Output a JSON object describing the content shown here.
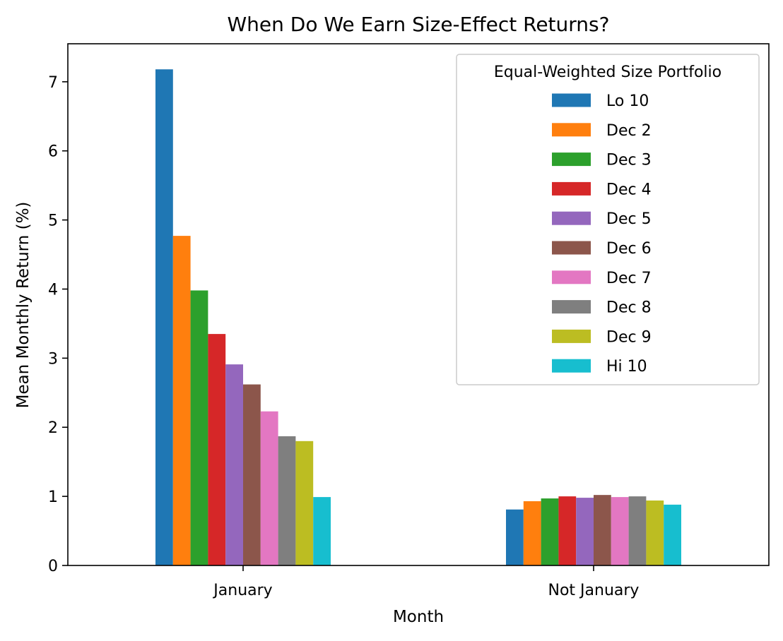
{
  "chart_data": {
    "type": "bar",
    "title": "When Do We Earn Size-Effect Returns?",
    "xlabel": "Month",
    "ylabel": "Mean Monthly Return (%)",
    "ylim": [
      0,
      7.55
    ],
    "yticks": [
      0,
      1,
      2,
      3,
      4,
      5,
      6,
      7
    ],
    "categories": [
      "January",
      "Not January"
    ],
    "grid": false,
    "legend": {
      "title": "Equal-Weighted Size Portfolio",
      "placement": "top-right"
    },
    "series": [
      {
        "name": "Lo 10",
        "color": "#1f77b4",
        "values": [
          7.18,
          0.81
        ]
      },
      {
        "name": "Dec 2",
        "color": "#ff7f0e",
        "values": [
          4.77,
          0.93
        ]
      },
      {
        "name": "Dec 3",
        "color": "#2ca02c",
        "values": [
          3.98,
          0.97
        ]
      },
      {
        "name": "Dec 4",
        "color": "#d62728",
        "values": [
          3.35,
          1.0
        ]
      },
      {
        "name": "Dec 5",
        "color": "#9467bd",
        "values": [
          2.91,
          0.98
        ]
      },
      {
        "name": "Dec 6",
        "color": "#8c564b",
        "values": [
          2.62,
          1.02
        ]
      },
      {
        "name": "Dec 7",
        "color": "#e377c2",
        "values": [
          2.23,
          0.99
        ]
      },
      {
        "name": "Dec 8",
        "color": "#7f7f7f",
        "values": [
          1.87,
          1.0
        ]
      },
      {
        "name": "Dec 9",
        "color": "#bcbd22",
        "values": [
          1.8,
          0.94
        ]
      },
      {
        "name": "Hi 10",
        "color": "#17becf",
        "values": [
          0.99,
          0.88
        ]
      }
    ]
  }
}
